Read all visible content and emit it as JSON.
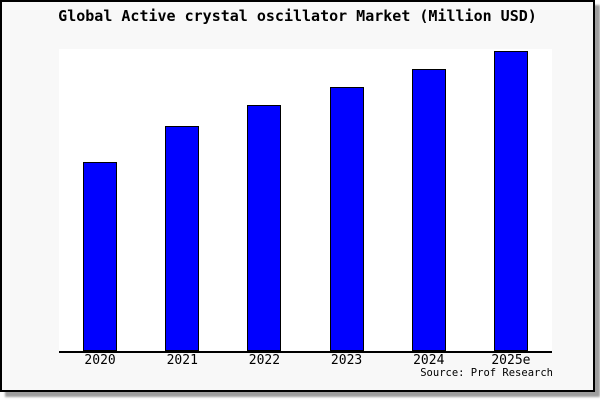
{
  "chart_data": {
    "type": "bar",
    "title": "Global Active crystal oscillator Market (Million USD)",
    "categories": [
      "2020",
      "2021",
      "2022",
      "2023",
      "2024",
      "2025e"
    ],
    "values": [
      63,
      75,
      82,
      88,
      94,
      100
    ],
    "value_scale": "relative, tallest bar (2025e) = 100; y-axis unlabeled in chart",
    "xlabel": "",
    "ylabel": "",
    "ylim": [
      0,
      100.7
    ],
    "grid": false,
    "legend": "none",
    "y_axis_visible": false,
    "bar_fill": "#0000ff",
    "bar_stroke": "#000000"
  },
  "footer": {
    "source": "Source: Prof Research"
  },
  "colors": {
    "page_bg": "#ffffff",
    "figure_bg": "#f8f8f8",
    "plot_bg": "#ffffff",
    "frame_border": "#000000",
    "shadow": "#9e9e9e",
    "axis_line": "#000000",
    "text": "#000000"
  }
}
